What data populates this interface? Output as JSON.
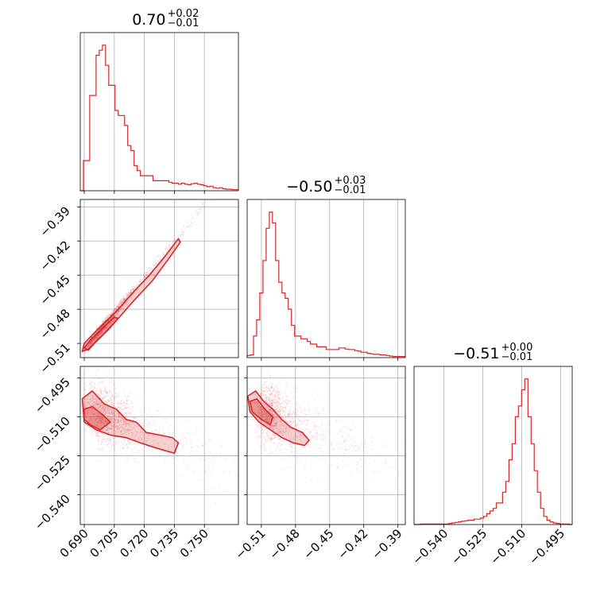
{
  "chart_data": {
    "type": "corner",
    "color": "#d62728",
    "grid": true,
    "parameters": [
      {
        "title": "0.70",
        "title_plus": "+0.02",
        "title_minus": "−0.01",
        "range": [
          0.688,
          0.767
        ],
        "ticks": [
          0.69,
          0.705,
          0.72,
          0.735,
          0.75
        ],
        "tick_labels": [
          "0.690",
          "0.705",
          "0.720",
          "0.735",
          "0.750"
        ]
      },
      {
        "title": "−0.50",
        "title_plus": "+0.03",
        "title_minus": "−0.01",
        "range": [
          -0.5225,
          -0.3835
        ],
        "ticks": [
          -0.51,
          -0.48,
          -0.45,
          -0.42,
          -0.39
        ],
        "tick_labels": [
          "−0.51",
          "−0.48",
          "−0.45",
          "−0.42",
          "−0.39"
        ]
      },
      {
        "title": "−0.51",
        "title_plus": "+0.00",
        "title_minus": "−0.01",
        "range": [
          -0.5515,
          -0.4905
        ],
        "ticks": [
          -0.54,
          -0.525,
          -0.51,
          -0.495
        ],
        "tick_labels": [
          "−0.540",
          "−0.525",
          "−0.510",
          "−0.495"
        ]
      }
    ],
    "histograms": [
      {
        "param": 0,
        "bin_edges_start": 0.688,
        "bin_width": 0.00158,
        "counts": [
          0,
          6,
          6,
          19,
          19,
          27,
          28,
          29,
          25,
          21,
          21,
          16,
          15,
          15,
          13,
          9,
          8,
          5,
          4,
          3,
          3,
          3,
          3,
          2,
          2,
          2,
          2,
          2,
          1.7,
          1.5,
          1.5,
          1.3,
          1.5,
          1.3,
          1.2,
          1.4,
          1.5,
          1.3,
          1.2,
          1.0,
          0.8,
          0.9,
          0.6,
          0.5,
          0.6,
          0.4,
          0.3,
          0.3,
          0.2,
          0.2
        ]
      },
      {
        "param": 1,
        "bin_edges_start": -0.5225,
        "bin_width": 0.00278,
        "counts": [
          0.4,
          0.5,
          4,
          7,
          12,
          18,
          24,
          27,
          25,
          18,
          14,
          12,
          11,
          9,
          6,
          4,
          4,
          3.5,
          3.5,
          3,
          2.5,
          2.5,
          2,
          2,
          2,
          1.5,
          1.5,
          1.5,
          1.5,
          1.8,
          1.8,
          1.6,
          1.5,
          1.5,
          1.3,
          1.2,
          1.0,
          1.0,
          0.8,
          0.7,
          0.6,
          0.6,
          0.5,
          0.5,
          0.4,
          0.3,
          0.2,
          0.2,
          0.2,
          0.2
        ]
      },
      {
        "param": 2,
        "bin_edges_start": -0.5515,
        "bin_width": 0.00122,
        "counts": [
          0,
          0,
          0.1,
          0.1,
          0.1,
          0.1,
          0.1,
          0.1,
          0.1,
          0.1,
          0.1,
          0.2,
          0.3,
          0.4,
          0.5,
          0.6,
          0.7,
          0.8,
          0.8,
          1,
          1,
          1.2,
          1.5,
          2.0,
          2.5,
          3,
          4,
          4,
          6,
          8,
          12,
          15,
          20,
          22,
          25,
          27,
          20,
          15,
          10,
          6,
          3,
          1.5,
          0.8,
          0.5,
          0.3,
          0.2,
          0.1,
          0.1,
          0.1,
          0.0
        ]
      }
    ],
    "pairs": [
      {
        "x_param": 0,
        "y_param": 1,
        "relation": "linear",
        "samples": 1500,
        "ridge": [
          [
            0.69,
            -0.515
          ],
          [
            0.7,
            -0.495
          ],
          [
            0.71,
            -0.473
          ],
          [
            0.72,
            -0.452
          ],
          [
            0.73,
            -0.43
          ],
          [
            0.738,
            -0.417
          ]
        ],
        "outer_contour": [
          [
            0.689,
            -0.517
          ],
          [
            0.69,
            -0.51
          ],
          [
            0.697,
            -0.497
          ],
          [
            0.706,
            -0.482
          ],
          [
            0.714,
            -0.466
          ],
          [
            0.723,
            -0.449
          ],
          [
            0.731,
            -0.432
          ],
          [
            0.737,
            -0.418
          ],
          [
            0.738,
            -0.421
          ],
          [
            0.732,
            -0.436
          ],
          [
            0.724,
            -0.455
          ],
          [
            0.715,
            -0.472
          ],
          [
            0.706,
            -0.49
          ],
          [
            0.698,
            -0.505
          ],
          [
            0.692,
            -0.515
          ]
        ],
        "inner_contour": [
          [
            0.69,
            -0.514
          ],
          [
            0.693,
            -0.507
          ],
          [
            0.699,
            -0.497
          ],
          [
            0.705,
            -0.487
          ],
          [
            0.707,
            -0.488
          ],
          [
            0.702,
            -0.498
          ],
          [
            0.696,
            -0.508
          ],
          [
            0.692,
            -0.516
          ]
        ]
      },
      {
        "x_param": 0,
        "y_param": 2,
        "relation": "weak-negative",
        "samples": 1500,
        "outer_contour": [
          [
            0.689,
            -0.503
          ],
          [
            0.694,
            -0.5
          ],
          [
            0.7,
            -0.505
          ],
          [
            0.706,
            -0.507
          ],
          [
            0.711,
            -0.511
          ],
          [
            0.716,
            -0.512
          ],
          [
            0.721,
            -0.516
          ],
          [
            0.728,
            -0.517
          ],
          [
            0.734,
            -0.518
          ],
          [
            0.737,
            -0.52
          ],
          [
            0.735,
            -0.524
          ],
          [
            0.726,
            -0.522
          ],
          [
            0.718,
            -0.52
          ],
          [
            0.711,
            -0.518
          ],
          [
            0.703,
            -0.517
          ],
          [
            0.696,
            -0.515
          ],
          [
            0.69,
            -0.512
          ]
        ],
        "inner_contour": [
          [
            0.69,
            -0.507
          ],
          [
            0.694,
            -0.506
          ],
          [
            0.699,
            -0.509
          ],
          [
            0.703,
            -0.512
          ],
          [
            0.698,
            -0.515
          ],
          [
            0.693,
            -0.513
          ],
          [
            0.69,
            -0.511
          ]
        ]
      },
      {
        "x_param": 1,
        "y_param": 2,
        "relation": "weak-negative",
        "samples": 1500,
        "outer_contour": [
          [
            -0.522,
            -0.502
          ],
          [
            -0.515,
            -0.5
          ],
          [
            -0.508,
            -0.504
          ],
          [
            -0.5,
            -0.507
          ],
          [
            -0.492,
            -0.511
          ],
          [
            -0.484,
            -0.514
          ],
          [
            -0.474,
            -0.516
          ],
          [
            -0.468,
            -0.519
          ],
          [
            -0.472,
            -0.521
          ],
          [
            -0.482,
            -0.52
          ],
          [
            -0.492,
            -0.518
          ],
          [
            -0.502,
            -0.515
          ],
          [
            -0.512,
            -0.512
          ],
          [
            -0.52,
            -0.508
          ]
        ],
        "inner_contour": [
          [
            -0.52,
            -0.504
          ],
          [
            -0.514,
            -0.503
          ],
          [
            -0.507,
            -0.507
          ],
          [
            -0.5,
            -0.51
          ],
          [
            -0.502,
            -0.513
          ],
          [
            -0.51,
            -0.511
          ],
          [
            -0.518,
            -0.508
          ]
        ]
      }
    ]
  }
}
